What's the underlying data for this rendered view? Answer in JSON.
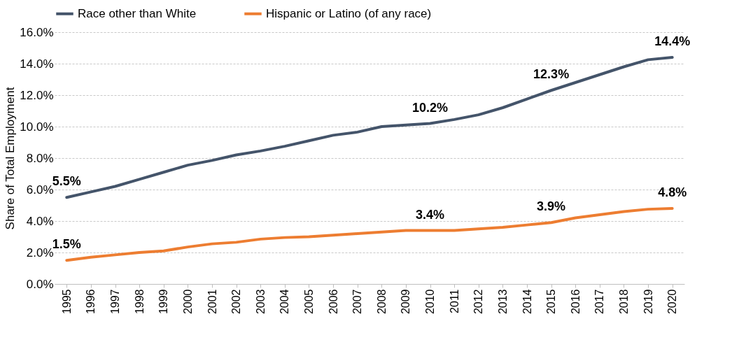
{
  "chart_data": {
    "type": "line",
    "ylabel": "Share of Total Employment",
    "categories": [
      "1995",
      "1996",
      "1997",
      "1998",
      "1999",
      "2000",
      "2001",
      "2002",
      "2003",
      "2004",
      "2005",
      "2006",
      "2007",
      "2008",
      "2009",
      "2010",
      "2011",
      "2012",
      "2013",
      "2014",
      "2015",
      "2016",
      "2017",
      "2018",
      "2019",
      "2020"
    ],
    "series": [
      {
        "name": "Race other than White",
        "color": "#44546a",
        "values": [
          5.5,
          5.85,
          6.2,
          6.65,
          7.1,
          7.55,
          7.85,
          8.2,
          8.45,
          8.75,
          9.1,
          9.45,
          9.65,
          10.0,
          10.1,
          10.2,
          10.45,
          10.75,
          11.2,
          11.75,
          12.3,
          12.8,
          13.3,
          13.8,
          14.25,
          14.4
        ],
        "value_labels": [
          "5.5%",
          null,
          null,
          null,
          null,
          null,
          null,
          null,
          null,
          null,
          null,
          null,
          null,
          null,
          null,
          "10.2%",
          null,
          null,
          null,
          null,
          "12.3%",
          null,
          null,
          null,
          null,
          "14.4%"
        ]
      },
      {
        "name": "Hispanic or Latino (of any race)",
        "color": "#ed7d31",
        "values": [
          1.5,
          1.7,
          1.85,
          2.0,
          2.1,
          2.35,
          2.55,
          2.65,
          2.85,
          2.95,
          3.0,
          3.1,
          3.2,
          3.3,
          3.4,
          3.4,
          3.4,
          3.5,
          3.6,
          3.75,
          3.9,
          4.2,
          4.4,
          4.6,
          4.75,
          4.8
        ],
        "value_labels": [
          "1.5%",
          null,
          null,
          null,
          null,
          null,
          null,
          null,
          null,
          null,
          null,
          null,
          null,
          null,
          null,
          "3.4%",
          null,
          null,
          null,
          null,
          "3.9%",
          null,
          null,
          null,
          null,
          "4.8%"
        ]
      }
    ],
    "ylim": [
      0,
      16
    ],
    "yticks": [
      {
        "value": 0,
        "label": "0.0%"
      },
      {
        "value": 2,
        "label": "2.0%"
      },
      {
        "value": 4,
        "label": "4.0%"
      },
      {
        "value": 6,
        "label": "6.0%"
      },
      {
        "value": 8,
        "label": "8.0%"
      },
      {
        "value": 10,
        "label": "10.0%"
      },
      {
        "value": 12,
        "label": "12.0%"
      },
      {
        "value": 14,
        "label": "14.0%"
      },
      {
        "value": 16,
        "label": "16.0%"
      }
    ],
    "grid": "y",
    "legend": "top",
    "marker": "none",
    "line_style": "solid"
  }
}
